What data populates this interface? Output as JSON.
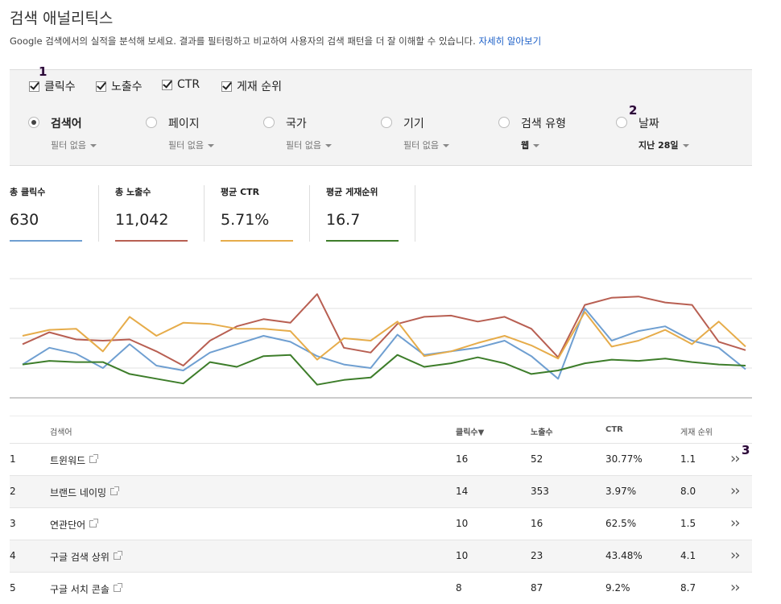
{
  "header": {
    "title": "검색 애널리틱스",
    "description": "Google 검색에서의 실적을 분석해 보세요. 결과를 필터링하고 비교하여 사용자의 검색 패턴을 더 잘 이해할 수 있습니다.",
    "learn_more": "자세히 알아보기"
  },
  "metrics": [
    {
      "label": "클릭수",
      "checked": true
    },
    {
      "label": "노출수",
      "checked": true
    },
    {
      "label": "CTR",
      "checked": true
    },
    {
      "label": "게재 순위",
      "checked": true
    }
  ],
  "filters": [
    {
      "label": "검색어",
      "sub": "필터 없음",
      "selected": true
    },
    {
      "label": "페이지",
      "sub": "필터 없음",
      "selected": false
    },
    {
      "label": "국가",
      "sub": "필터 없음",
      "selected": false
    },
    {
      "label": "기기",
      "sub": "필터 없음",
      "selected": false
    },
    {
      "label": "검색 유형",
      "sub": "웹",
      "selected": false
    },
    {
      "label": "날짜",
      "sub": "지난 28일",
      "selected": false
    }
  ],
  "badges": [
    "1",
    "2",
    "3"
  ],
  "summary": [
    {
      "label": "총 클릭수",
      "value": "630",
      "color": "#6f9fd1"
    },
    {
      "label": "총 노출수",
      "value": "11,042",
      "color": "#b85f52"
    },
    {
      "label": "평균 CTR",
      "value": "5.71%",
      "color": "#e6ac4a"
    },
    {
      "label": "평균 게재순위",
      "value": "16.7",
      "color": "#3d7d2a"
    }
  ],
  "chart_data": {
    "type": "line",
    "grid": true,
    "x_points": 28,
    "series": [
      {
        "key": "clicks",
        "color": "#6f9fd1",
        "values": [
          0.28,
          0.42,
          0.37,
          0.25,
          0.45,
          0.27,
          0.23,
          0.38,
          0.45,
          0.52,
          0.47,
          0.35,
          0.28,
          0.25,
          0.53,
          0.36,
          0.39,
          0.42,
          0.48,
          0.35,
          0.16,
          0.75,
          0.48,
          0.56,
          0.6,
          0.48,
          0.42,
          0.24
        ]
      },
      {
        "key": "impressions",
        "color": "#b85f52",
        "values": [
          0.45,
          0.55,
          0.49,
          0.48,
          0.49,
          0.39,
          0.27,
          0.48,
          0.6,
          0.66,
          0.63,
          0.87,
          0.42,
          0.38,
          0.62,
          0.68,
          0.69,
          0.64,
          0.68,
          0.58,
          0.34,
          0.78,
          0.84,
          0.85,
          0.8,
          0.78,
          0.47,
          0.4
        ]
      },
      {
        "key": "ctr",
        "color": "#e6ac4a",
        "values": [
          0.52,
          0.57,
          0.58,
          0.39,
          0.68,
          0.52,
          0.63,
          0.62,
          0.58,
          0.58,
          0.56,
          0.32,
          0.5,
          0.48,
          0.64,
          0.35,
          0.39,
          0.46,
          0.52,
          0.44,
          0.33,
          0.72,
          0.43,
          0.48,
          0.57,
          0.45,
          0.64,
          0.43
        ]
      },
      {
        "key": "position",
        "color": "#3d7d2a",
        "values": [
          0.28,
          0.31,
          0.3,
          0.3,
          0.2,
          0.16,
          0.12,
          0.3,
          0.26,
          0.35,
          0.36,
          0.11,
          0.15,
          0.17,
          0.36,
          0.26,
          0.29,
          0.34,
          0.29,
          0.2,
          0.23,
          0.29,
          0.32,
          0.31,
          0.33,
          0.3,
          0.28,
          0.27
        ]
      }
    ]
  },
  "table": {
    "headers": {
      "query": "검색어",
      "clicks": "클릭수▼",
      "impressions": "노출수",
      "ctr": "CTR",
      "position": "게재 순위"
    },
    "rows": [
      {
        "rank": "1",
        "query": "트윈워드",
        "clicks": "16",
        "impressions": "52",
        "ctr": "30.77%",
        "position": "1.1"
      },
      {
        "rank": "2",
        "query": "브랜드 네이밍",
        "clicks": "14",
        "impressions": "353",
        "ctr": "3.97%",
        "position": "8.0"
      },
      {
        "rank": "3",
        "query": "연관단어",
        "clicks": "10",
        "impressions": "16",
        "ctr": "62.5%",
        "position": "1.5"
      },
      {
        "rank": "4",
        "query": "구글 검색 상위",
        "clicks": "10",
        "impressions": "23",
        "ctr": "43.48%",
        "position": "4.1"
      },
      {
        "rank": "5",
        "query": "구글 서치 콘솔",
        "clicks": "8",
        "impressions": "87",
        "ctr": "9.2%",
        "position": "8.7"
      }
    ]
  }
}
